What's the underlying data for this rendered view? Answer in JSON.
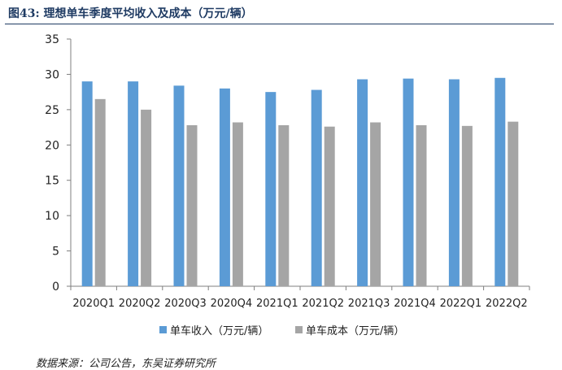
{
  "figure": {
    "title": "图43:  理想单车季度平均收入及成本（万元/辆）",
    "source": "数据来源：公司公告，东吴证券研究所"
  },
  "chart_data": {
    "type": "bar",
    "categories": [
      "2020Q1",
      "2020Q2",
      "2020Q3",
      "2020Q4",
      "2021Q1",
      "2021Q2",
      "2021Q3",
      "2021Q4",
      "2022Q1",
      "2022Q2"
    ],
    "series": [
      {
        "name": "单车收入（万元/辆）",
        "color": "#5b9bd5",
        "values": [
          29.0,
          29.0,
          28.4,
          28.0,
          27.5,
          27.8,
          29.3,
          29.4,
          29.3,
          29.5
        ]
      },
      {
        "name": "单车成本（万元/辆）",
        "color": "#a5a5a5",
        "values": [
          26.5,
          25.0,
          22.8,
          23.2,
          22.8,
          22.6,
          23.2,
          22.8,
          22.7,
          23.3
        ]
      }
    ],
    "yticks": [
      0,
      5,
      10,
      15,
      20,
      25,
      30,
      35
    ],
    "ylim": [
      0,
      35
    ],
    "grid": false,
    "legend_position": "bottom-center"
  }
}
